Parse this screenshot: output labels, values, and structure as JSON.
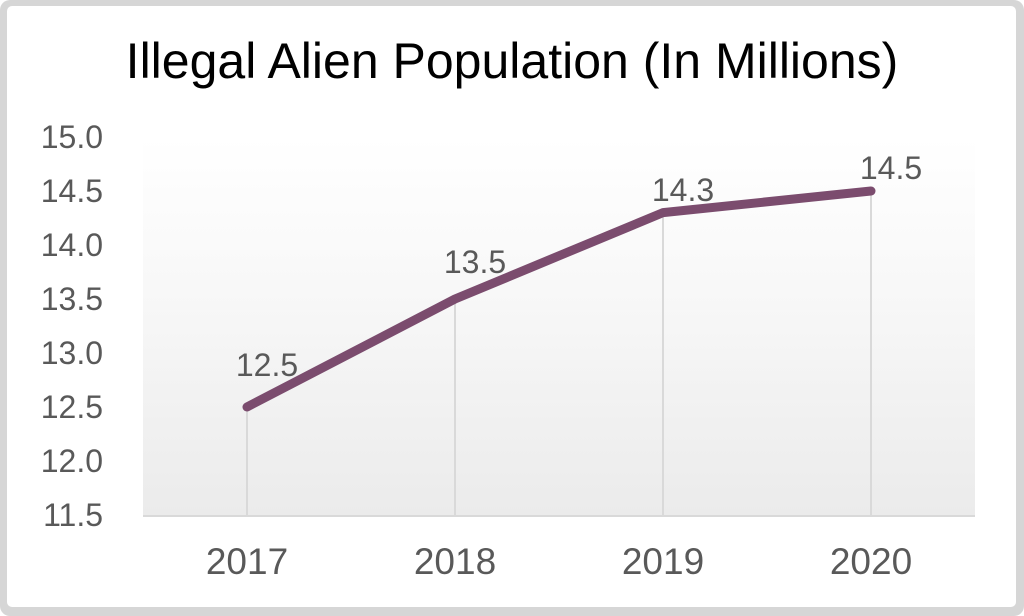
{
  "chart_data": {
    "type": "line",
    "title": "Illegal Alien Population (In Millions)",
    "categories": [
      "2017",
      "2018",
      "2019",
      "2020"
    ],
    "values": [
      12.5,
      13.5,
      14.3,
      14.5
    ],
    "data_labels": [
      "12.5",
      "13.5",
      "14.3",
      "14.5"
    ],
    "y_tick_labels": [
      "15.0",
      "14.5",
      "14.0",
      "13.5",
      "13.0",
      "12.5",
      "12.0",
      "11.5"
    ],
    "ylim": [
      11.5,
      15.0
    ],
    "xlabel": "",
    "ylabel": "",
    "legend": "none",
    "grid": "off",
    "line_color": "#7b4c6e",
    "drop_line_color": "#d9d9d9",
    "axis_line_color": "#d9d9d9",
    "tick_label_color": "#595959",
    "data_label_color": "#595959",
    "title_color": "#000000",
    "frame_color": "#d6d6d6",
    "card_color": "#ffffff"
  }
}
